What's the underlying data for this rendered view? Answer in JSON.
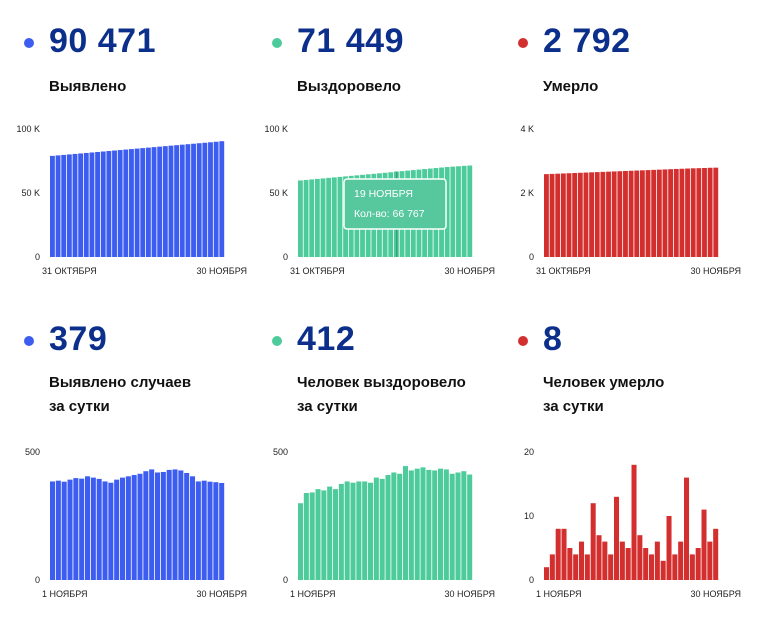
{
  "panels": [
    {
      "number": "90 471",
      "label": "Выявлено",
      "color": "#3d5df0",
      "chart_data": {
        "type": "bar",
        "ylim": [
          0,
          100000
        ],
        "yticks": [
          {
            "value": 0,
            "label": "0"
          },
          {
            "value": 50000,
            "label": "50 K"
          },
          {
            "value": 100000,
            "label": "100 K"
          }
        ],
        "xlabel_start": "31 ОКТЯБРЯ",
        "xlabel_end": "30 НОЯБРЯ",
        "values": [
          79000,
          79380,
          79760,
          80140,
          80520,
          80900,
          81280,
          81660,
          82040,
          82420,
          82800,
          83180,
          83560,
          83940,
          84320,
          84700,
          85080,
          85460,
          85840,
          86220,
          86600,
          86980,
          87360,
          87740,
          88120,
          88500,
          88880,
          89260,
          89640,
          90020,
          90471
        ]
      }
    },
    {
      "number": "71 449",
      "label": "Выздоровело",
      "color": "#4ecb9b",
      "chart_data": {
        "type": "bar",
        "ylim": [
          0,
          100000
        ],
        "yticks": [
          {
            "value": 0,
            "label": "0"
          },
          {
            "value": 50000,
            "label": "50 K"
          },
          {
            "value": 100000,
            "label": "100 K"
          }
        ],
        "xlabel_start": "31 ОКТЯБРЯ",
        "xlabel_end": "30 НОЯБРЯ",
        "values": [
          59800,
          60200,
          60600,
          61000,
          61400,
          61800,
          62200,
          62600,
          63000,
          63400,
          63800,
          64200,
          64600,
          65000,
          65400,
          65800,
          66200,
          66767,
          67100,
          67500,
          67900,
          68300,
          68700,
          69100,
          69500,
          69900,
          70300,
          70600,
          70900,
          71200,
          71449
        ],
        "tooltip": {
          "title": "19 НОЯБРЯ",
          "text": "Кол-во: 66 767",
          "index": 17
        }
      }
    },
    {
      "number": "2 792",
      "label": "Умерло",
      "color": "#d42f2f",
      "chart_data": {
        "type": "bar",
        "ylim": [
          0,
          4000
        ],
        "yticks": [
          {
            "value": 0,
            "label": "0"
          },
          {
            "value": 2000,
            "label": "2 K"
          },
          {
            "value": 4000,
            "label": "4 K"
          }
        ],
        "xlabel_start": "31 ОКТЯБРЯ",
        "xlabel_end": "30 НОЯБРЯ",
        "values": [
          2590,
          2597,
          2604,
          2611,
          2618,
          2625,
          2632,
          2639,
          2646,
          2653,
          2660,
          2667,
          2674,
          2681,
          2688,
          2695,
          2702,
          2709,
          2716,
          2723,
          2730,
          2737,
          2744,
          2751,
          2758,
          2765,
          2772,
          2776,
          2782,
          2788,
          2792
        ]
      }
    },
    {
      "number": "379",
      "label": "Выявлено случаев\nза сутки",
      "color": "#3d5df0",
      "chart_data": {
        "type": "bar",
        "ylim": [
          0,
          500
        ],
        "yticks": [
          {
            "value": 0,
            "label": "0"
          },
          {
            "value": 500,
            "label": "500"
          }
        ],
        "xlabel_start": "1 НОЯБРЯ",
        "xlabel_end": "30 НОЯБРЯ",
        "values": [
          385,
          388,
          384,
          392,
          398,
          396,
          405,
          400,
          395,
          385,
          380,
          392,
          400,
          405,
          410,
          415,
          425,
          432,
          420,
          422,
          430,
          432,
          428,
          418,
          405,
          385,
          388,
          384,
          382,
          379
        ]
      }
    },
    {
      "number": "412",
      "label": "Человек выздоровело\nза сутки",
      "color": "#4ecb9b",
      "chart_data": {
        "type": "bar",
        "ylim": [
          0,
          500
        ],
        "yticks": [
          {
            "value": 0,
            "label": "0"
          },
          {
            "value": 500,
            "label": "500"
          }
        ],
        "xlabel_start": "1 НОЯБРЯ",
        "xlabel_end": "30 НОЯБРЯ",
        "values": [
          300,
          340,
          342,
          355,
          350,
          365,
          355,
          375,
          385,
          380,
          385,
          385,
          380,
          400,
          395,
          410,
          420,
          415,
          445,
          428,
          435,
          440,
          430,
          428,
          435,
          432,
          415,
          420,
          425,
          412
        ]
      }
    },
    {
      "number": "8",
      "label": "Человек умерло\nза сутки",
      "color": "#d42f2f",
      "chart_data": {
        "type": "bar",
        "ylim": [
          0,
          20
        ],
        "yticks": [
          {
            "value": 0,
            "label": "0"
          },
          {
            "value": 10,
            "label": "10"
          },
          {
            "value": 20,
            "label": "20"
          }
        ],
        "xlabel_start": "1 НОЯБРЯ",
        "xlabel_end": "30 НОЯБРЯ",
        "values": [
          2,
          4,
          8,
          8,
          5,
          4,
          6,
          4,
          12,
          7,
          6,
          4,
          13,
          6,
          5,
          18,
          7,
          5,
          4,
          6,
          3,
          10,
          4,
          6,
          16,
          4,
          5,
          11,
          6,
          8
        ]
      }
    }
  ]
}
